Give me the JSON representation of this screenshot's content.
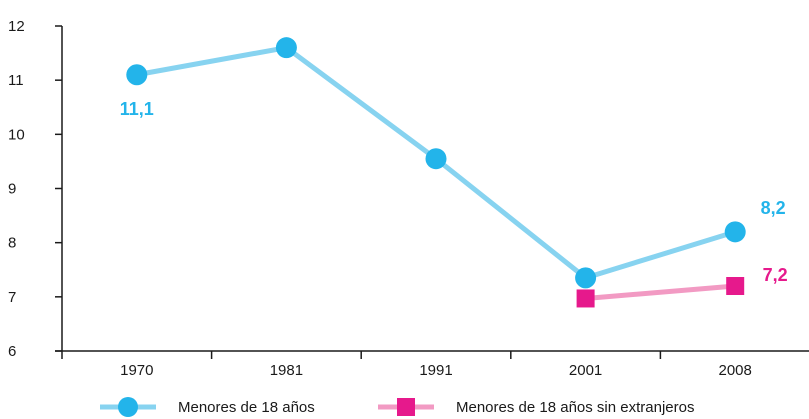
{
  "chart_data": {
    "type": "line",
    "categories": [
      "1970",
      "1981",
      "1991",
      "2001",
      "2008"
    ],
    "ylim": [
      6,
      12
    ],
    "yticks": [
      6,
      7,
      8,
      9,
      10,
      11,
      12
    ],
    "grid": false,
    "legend_position": "bottom",
    "series": [
      {
        "name": "Menores de 18 años",
        "color": "#87d3f0",
        "marker_color": "#23b4ea",
        "marker": "circle",
        "values": [
          11.1,
          11.6,
          9.55,
          7.35,
          8.2
        ]
      },
      {
        "name": "Menores de 18 años sin extranjeros",
        "color": "#f29ac3",
        "marker_color": "#e6198c",
        "marker": "square",
        "values": [
          null,
          null,
          null,
          6.97,
          7.2
        ]
      }
    ],
    "annotations": [
      {
        "text": "11,1",
        "series": 0,
        "category": "1970",
        "color": "#23b4ea"
      },
      {
        "text": "8,2",
        "series": 0,
        "category": "2008",
        "color": "#23b4ea"
      },
      {
        "text": "7,2",
        "series": 1,
        "category": "2008",
        "color": "#e6198c"
      }
    ]
  }
}
